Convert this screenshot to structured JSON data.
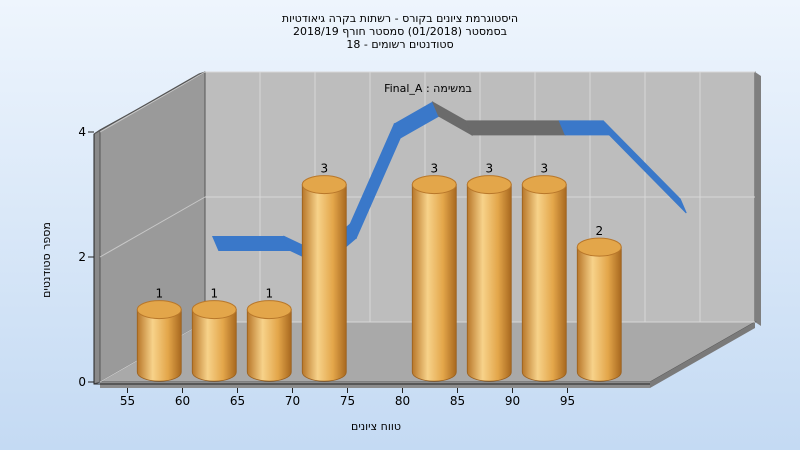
{
  "chart_data": {
    "type": "bar",
    "title_lines": [
      "היסטוגרמת ציונים בקורס - רשתות בקרה גיאודטיות",
      "בסמסטר  (01/2018)  סמסטר חורף 2018/19",
      "סטודנטים רשומים - 18"
    ],
    "subtitle": "Final_A : במשימה",
    "xlabel": "טווח ציונים",
    "ylabel": "מספר סטודנטים",
    "x_ticks": [
      "55",
      "60",
      "65",
      "70",
      "75",
      "80",
      "85",
      "90",
      "95"
    ],
    "y_ticks": [
      "0",
      "2",
      "4"
    ],
    "ylim": [
      0,
      4
    ],
    "categories": [
      55,
      60,
      65,
      70,
      75,
      80,
      85,
      90,
      95
    ],
    "values": [
      1,
      1,
      1,
      3,
      0,
      3,
      3,
      3,
      2
    ],
    "data_labels": [
      "1",
      "1",
      "1",
      "3",
      "",
      "3",
      "3",
      "3",
      "2"
    ],
    "trend_line": [
      {
        "x": 57.5,
        "y": 1.8
      },
      {
        "x": 64,
        "y": 1.8
      },
      {
        "x": 67,
        "y": 1.55
      },
      {
        "x": 70,
        "y": 2
      },
      {
        "x": 74,
        "y": 3.6
      },
      {
        "x": 77.5,
        "y": 3.95
      },
      {
        "x": 80.5,
        "y": 3.65
      },
      {
        "x": 89,
        "y": 3.65
      },
      {
        "x": 93,
        "y": 3.65
      },
      {
        "x": 100,
        "y": 2.4
      }
    ],
    "grid": true,
    "colors": {
      "bar_light": "#f7d28a",
      "bar_mid": "#e3a64a",
      "bar_dark": "#b8772a",
      "trend": "#3a78c9",
      "trend_shadow": "#6b6b6b",
      "back_wall": "#bdbdbd",
      "side_wall": "#9a9a9a",
      "floor": "#a9a9a9"
    }
  }
}
